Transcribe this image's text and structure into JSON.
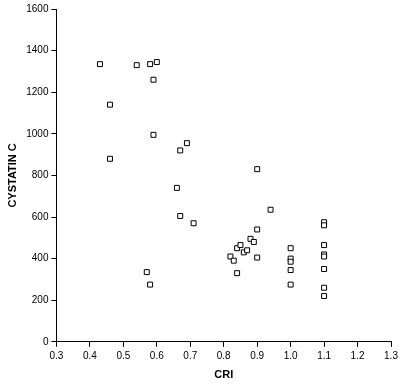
{
  "chart_data": {
    "type": "scatter",
    "x_label": "CRI",
    "y_label": "CYSTATIN C",
    "x": [
      0.43,
      0.46,
      0.46,
      0.54,
      0.58,
      0.6,
      0.59,
      0.59,
      0.57,
      0.58,
      0.67,
      0.69,
      0.66,
      0.67,
      0.71,
      0.82,
      0.83,
      0.84,
      0.84,
      0.85,
      0.86,
      0.87,
      0.88,
      0.89,
      0.9,
      0.9,
      0.9,
      0.94,
      1.0,
      1.0,
      1.0,
      1.0,
      1.0,
      1.1,
      1.1,
      1.1,
      1.1,
      1.1,
      1.1,
      1.1,
      1.1
    ],
    "values": [
      1335,
      1140,
      880,
      1330,
      1335,
      1345,
      1260,
      995,
      335,
      275,
      920,
      955,
      740,
      605,
      570,
      410,
      390,
      450,
      330,
      465,
      430,
      440,
      495,
      480,
      540,
      405,
      830,
      635,
      450,
      400,
      385,
      345,
      275,
      575,
      560,
      465,
      420,
      410,
      350,
      260,
      220
    ],
    "color": "#000000",
    "marker": "square",
    "xlim": [
      0.3,
      1.3
    ],
    "xticks": [
      0.3,
      0.4,
      0.5,
      0.6,
      0.7,
      0.8,
      0.9,
      {
        "value": 1,
        "label": "1.0"
      },
      1.1,
      1.2,
      1.3
    ],
    "ylim": [
      0,
      1600
    ],
    "yticks": [
      0,
      200,
      400,
      600,
      800,
      1000,
      1200,
      1400,
      1600
    ],
    "grid": false
  }
}
